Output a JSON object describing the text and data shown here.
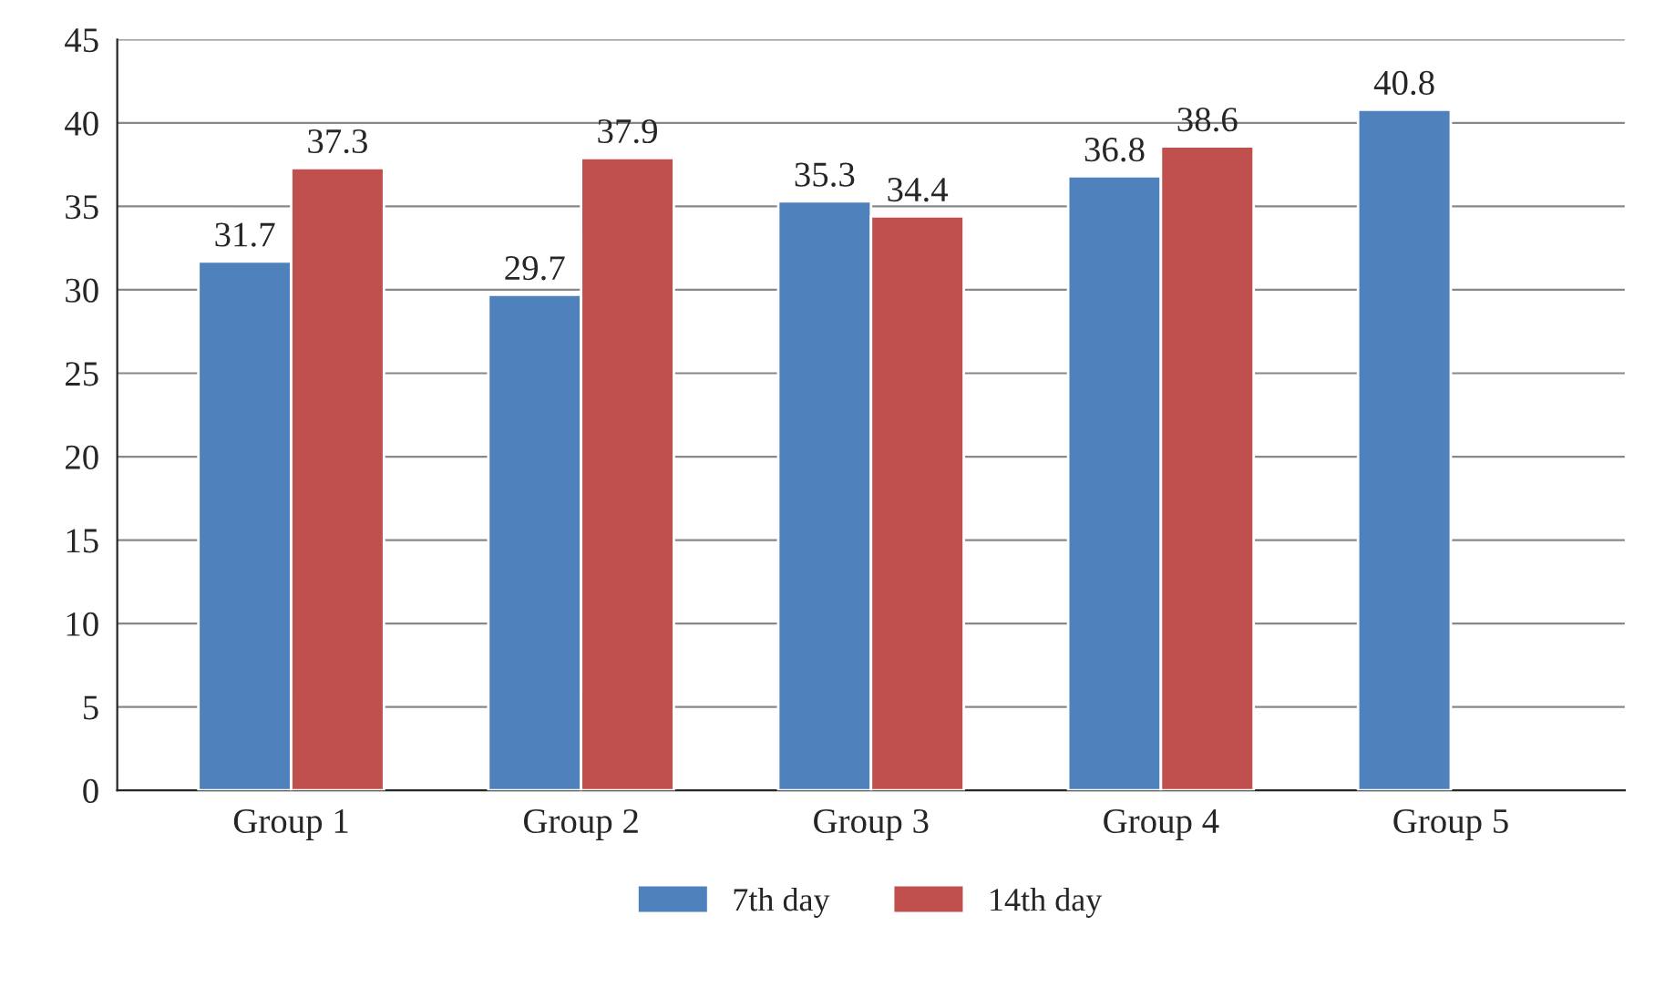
{
  "chart_data": {
    "type": "bar",
    "categories": [
      "Group 1",
      "Group 2",
      "Group 3",
      "Group 4",
      "Group 5"
    ],
    "series": [
      {
        "name": "7th day",
        "color": "#4f81bd",
        "values": [
          31.7,
          29.7,
          35.3,
          36.8,
          40.8
        ]
      },
      {
        "name": "14th day",
        "color": "#c0504d",
        "values": [
          37.3,
          37.9,
          34.4,
          38.6,
          null
        ]
      }
    ],
    "ylim": [
      0,
      45
    ],
    "yticks": [
      0,
      5,
      10,
      15,
      20,
      25,
      30,
      35,
      40,
      45
    ],
    "grid": "y",
    "legend": "bottom",
    "data_labels": true
  }
}
